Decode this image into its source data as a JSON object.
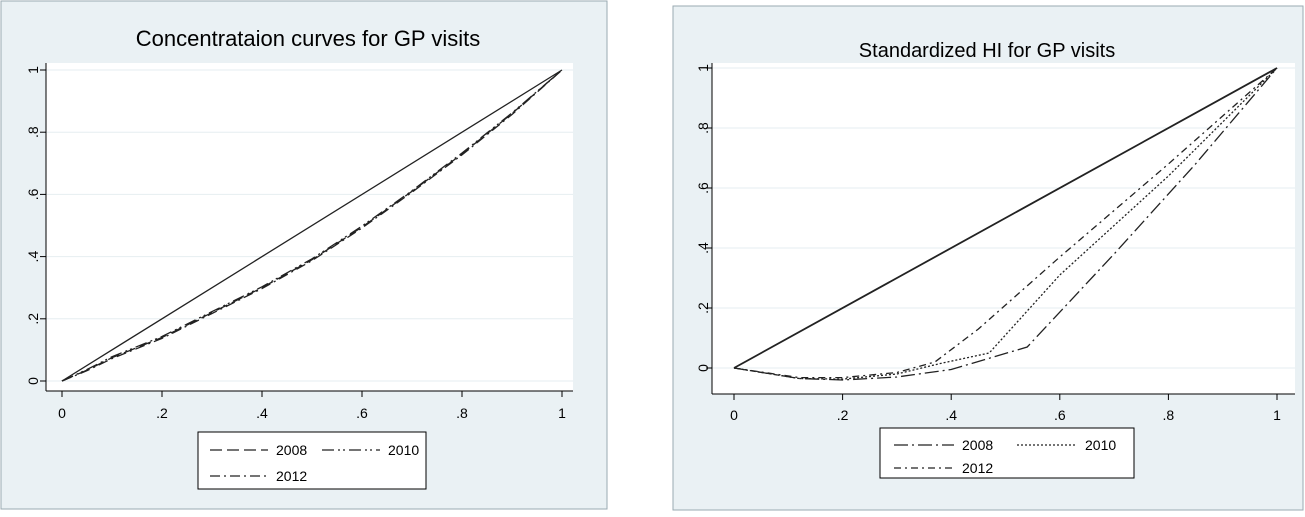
{
  "chart_data": [
    {
      "type": "line",
      "title": "Concentrataion curves for GP visits",
      "xlabel": "",
      "ylabel": "",
      "xlim": [
        0,
        1
      ],
      "ylim": [
        0,
        1
      ],
      "x_ticks": [
        "0",
        ".2",
        ".4",
        ".6",
        ".8",
        "1"
      ],
      "y_ticks": [
        "0",
        ".2",
        ".4",
        ".6",
        ".8",
        "1"
      ],
      "grid": true,
      "legend_position": "bottom",
      "equality_line": {
        "x": [
          0,
          1
        ],
        "y": [
          0,
          1
        ]
      },
      "series": [
        {
          "name": "2008",
          "style": "long-dash",
          "x": [
            0,
            0.05,
            0.1,
            0.2,
            0.3,
            0.4,
            0.5,
            0.6,
            0.7,
            0.8,
            0.9,
            1.0
          ],
          "y": [
            0,
            0.035,
            0.075,
            0.14,
            0.22,
            0.3,
            0.39,
            0.495,
            0.61,
            0.73,
            0.86,
            1.0
          ]
        },
        {
          "name": "2010",
          "style": "long-dash-dot-dot",
          "x": [
            0,
            0.05,
            0.1,
            0.2,
            0.3,
            0.4,
            0.5,
            0.6,
            0.7,
            0.8,
            0.9,
            1.0
          ],
          "y": [
            0,
            0.037,
            0.078,
            0.143,
            0.223,
            0.303,
            0.393,
            0.498,
            0.612,
            0.733,
            0.862,
            1.0
          ]
        },
        {
          "name": "2012",
          "style": "dash-dot",
          "x": [
            0,
            0.05,
            0.1,
            0.2,
            0.3,
            0.4,
            0.5,
            0.6,
            0.7,
            0.8,
            0.9,
            1.0
          ],
          "y": [
            0,
            0.033,
            0.072,
            0.137,
            0.217,
            0.297,
            0.387,
            0.492,
            0.607,
            0.727,
            0.857,
            1.0
          ]
        }
      ]
    },
    {
      "type": "line",
      "title": "Standardized HI for GP visits",
      "xlabel": "",
      "ylabel": "",
      "xlim": [
        0,
        1
      ],
      "ylim": [
        -0.05,
        1
      ],
      "x_ticks": [
        "0",
        ".2",
        ".4",
        ".6",
        ".8",
        "1"
      ],
      "y_ticks": [
        "0",
        ".2",
        ".4",
        ".6",
        ".8",
        "1"
      ],
      "grid": true,
      "legend_position": "bottom",
      "equality_line": {
        "x": [
          0,
          1
        ],
        "y": [
          0,
          1
        ]
      },
      "series": [
        {
          "name": "2008",
          "style": "long-dash-dot",
          "x": [
            0,
            0.12,
            0.2,
            0.3,
            0.4,
            0.54,
            0.7,
            0.85,
            1.0
          ],
          "y": [
            0,
            -0.035,
            -0.04,
            -0.03,
            -0.005,
            0.07,
            0.38,
            0.68,
            1.0
          ]
        },
        {
          "name": "2010",
          "style": "dotted",
          "x": [
            0,
            0.12,
            0.2,
            0.3,
            0.38,
            0.47,
            0.6,
            0.8,
            1.0
          ],
          "y": [
            0,
            -0.035,
            -0.037,
            -0.02,
            0.015,
            0.05,
            0.31,
            0.64,
            1.0
          ]
        },
        {
          "name": "2012",
          "style": "dash-dot-short",
          "x": [
            0,
            0.12,
            0.2,
            0.3,
            0.37,
            0.45,
            0.6,
            0.8,
            1.0
          ],
          "y": [
            0,
            -0.032,
            -0.032,
            -0.015,
            0.02,
            0.13,
            0.37,
            0.68,
            1.0
          ]
        }
      ]
    }
  ]
}
